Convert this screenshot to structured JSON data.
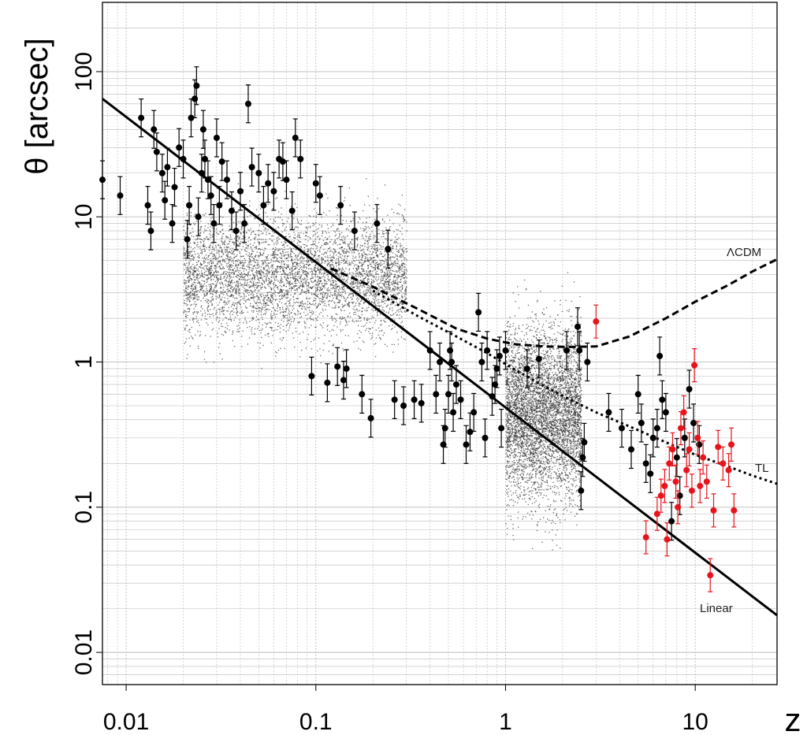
{
  "chart_data": {
    "type": "scatter",
    "title": "",
    "xlabel": "z",
    "ylabel": "θ [arcsec]",
    "x_scale": "log",
    "y_scale": "log",
    "xlim": [
      0.0075,
      27
    ],
    "ylim": [
      0.006,
      300
    ],
    "grid": true,
    "x_tick_labels": [
      "0.01",
      "0.1",
      "1",
      "10"
    ],
    "y_tick_labels": [
      "0.01",
      "0.1",
      "1",
      "10",
      "100"
    ],
    "curve_labels": {
      "lcdm": "ΛCDM",
      "tl": "TL",
      "linear": "Linear"
    },
    "colors": {
      "black": "#000000",
      "red": "#e8141c",
      "cloud": "#333333",
      "grid": "#bbbbbb"
    },
    "curves": [
      {
        "name": "Linear",
        "style": "solid",
        "x": [
          0.0075,
          27
        ],
        "y": [
          65,
          0.018
        ]
      },
      {
        "name": "ΛCDM",
        "style": "dashed",
        "x": [
          0.12,
          0.2,
          0.35,
          0.55,
          0.8,
          1.1,
          1.6,
          2.2,
          3,
          4.5,
          7,
          10,
          15,
          20,
          27
        ],
        "y": [
          4.4,
          3.3,
          2.3,
          1.7,
          1.45,
          1.33,
          1.28,
          1.27,
          1.28,
          1.5,
          2.0,
          2.6,
          3.4,
          4.2,
          5.1
        ]
      },
      {
        "name": "TL",
        "style": "dotted",
        "x": [
          0.2,
          0.35,
          0.55,
          0.8,
          1.1,
          1.6,
          2.2,
          3,
          4.5,
          7,
          10,
          15,
          20,
          27
        ],
        "y": [
          3.1,
          2.05,
          1.5,
          1.15,
          0.9,
          0.68,
          0.55,
          0.45,
          0.36,
          0.28,
          0.23,
          0.19,
          0.165,
          0.145
        ]
      }
    ],
    "error_bars": [
      {
        "name": "black points",
        "color": "#000000",
        "x": [
          0.0075,
          0.0093,
          0.012,
          0.013,
          0.0135,
          0.014,
          0.0145,
          0.0155,
          0.016,
          0.0165,
          0.0175,
          0.018,
          0.019,
          0.02,
          0.021,
          0.0215,
          0.022,
          0.023,
          0.0235,
          0.024,
          0.025,
          0.0255,
          0.026,
          0.027,
          0.028,
          0.029,
          0.03,
          0.031,
          0.032,
          0.034,
          0.036,
          0.038,
          0.04,
          0.042,
          0.044,
          0.046,
          0.05,
          0.053,
          0.056,
          0.06,
          0.064,
          0.067,
          0.07,
          0.075,
          0.078,
          0.083,
          0.095,
          0.1,
          0.105,
          0.115,
          0.13,
          0.135,
          0.14,
          0.145,
          0.16,
          0.175,
          0.195,
          0.21,
          0.24,
          0.26,
          0.29,
          0.33,
          0.36,
          0.4,
          0.43,
          0.45,
          0.47,
          0.48,
          0.5,
          0.51,
          0.52,
          0.53,
          0.55,
          0.58,
          0.62,
          0.65,
          0.68,
          0.72,
          0.75,
          0.78,
          0.8,
          0.85,
          0.88,
          0.9,
          0.93,
          0.95,
          1.0,
          1.3,
          1.5,
          2.1,
          2.4,
          2.45,
          2.5,
          2.55,
          2.6,
          2.7,
          3.5,
          4.1,
          4.6,
          5.0,
          5.2,
          5.5,
          5.8,
          6.0,
          6.3,
          6.5,
          6.7,
          7.0,
          7.5,
          8.0,
          8.3,
          8.8,
          9.3,
          9.8,
          10.5
        ],
        "y": [
          18,
          14,
          48,
          12,
          8,
          40,
          28,
          20,
          13,
          22,
          9,
          16,
          30,
          25,
          7,
          12,
          48,
          65,
          80,
          10,
          20,
          40,
          25,
          18,
          14,
          9,
          35,
          12,
          24,
          18,
          11,
          8,
          15,
          9,
          60,
          22,
          20,
          12,
          17,
          15,
          25,
          24,
          18,
          11,
          35,
          25,
          0.8,
          17,
          14,
          0.72,
          0.93,
          12,
          0.75,
          0.9,
          8,
          0.6,
          0.41,
          9,
          6,
          0.55,
          0.5,
          0.55,
          0.52,
          1.2,
          0.6,
          1.0,
          0.27,
          0.35,
          0.6,
          1.2,
          1.0,
          0.45,
          0.7,
          0.55,
          0.27,
          0.33,
          0.45,
          2.2,
          1.0,
          0.3,
          1.2,
          0.58,
          0.7,
          0.9,
          1.1,
          0.35,
          1.2,
          0.9,
          1.05,
          1.2,
          1.75,
          1.2,
          0.13,
          0.22,
          0.28,
          1.0,
          0.45,
          0.35,
          0.25,
          0.6,
          0.38,
          0.2,
          0.17,
          0.3,
          0.35,
          1.1,
          0.55,
          0.45,
          0.08,
          0.22,
          0.12,
          0.3,
          0.65,
          0.38,
          0.27
        ],
        "err_factor": 1.35
      },
      {
        "name": "red points",
        "color": "#e8141c",
        "x": [
          3.0,
          5.5,
          6.3,
          6.6,
          6.9,
          7.1,
          7.3,
          7.6,
          7.9,
          8.1,
          8.4,
          8.7,
          9.0,
          9.3,
          9.6,
          9.9,
          10.3,
          10.6,
          11.0,
          11.5,
          12.0,
          12.5,
          13.2,
          14.0,
          15.0,
          15.5,
          16.0
        ],
        "y": [
          1.9,
          0.062,
          0.09,
          0.12,
          0.14,
          0.06,
          0.2,
          0.25,
          0.15,
          0.1,
          0.35,
          0.45,
          0.18,
          0.25,
          0.13,
          0.95,
          0.3,
          0.14,
          0.22,
          0.15,
          0.034,
          0.095,
          0.26,
          0.2,
          0.18,
          0.27,
          0.095
        ],
        "err_factor": 1.3
      }
    ],
    "clouds": [
      {
        "name": "low-z simulated cloud",
        "x_range": [
          0.02,
          0.3
        ],
        "y_center": 4.0,
        "y_log_spread": 0.22,
        "count": 5200
      },
      {
        "name": "high-z simulated cloud",
        "x_range": [
          1.0,
          2.5
        ],
        "y_center": 0.45,
        "y_log_spread": 0.32,
        "count": 5200
      }
    ]
  }
}
